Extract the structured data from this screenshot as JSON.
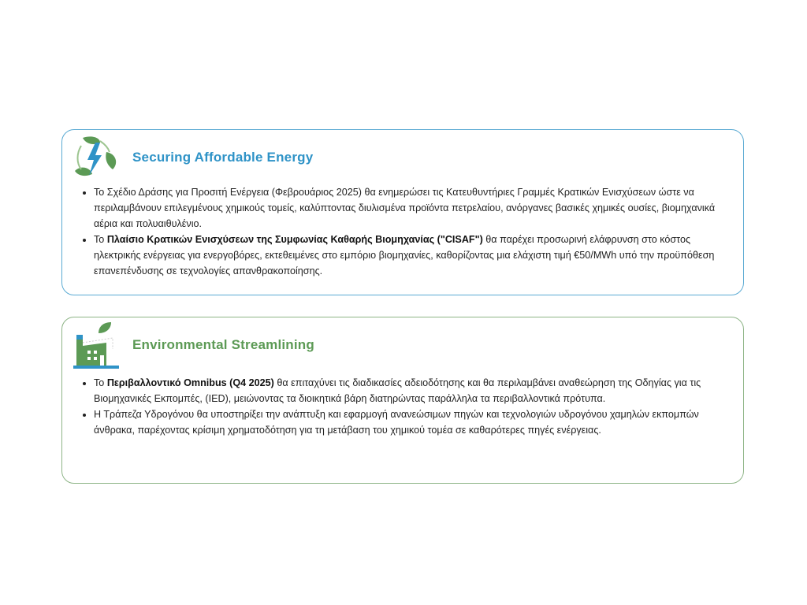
{
  "sections": [
    {
      "title": "Securing Affordable Energy",
      "icon": "energy-bolt-leaves-icon",
      "accent": "#2f93c7",
      "bullets": [
        {
          "pre": "Το Σχέδιο Δράσης για Προσιτή Ενέργεια (Φεβρουάριος 2025) θα ενημερώσει τις Κατευθυντήριες Γραμμές Κρατικών Ενισχύσεων ώστε να περιλαμβάνουν επιλεγμένους χημικούς τομείς, καλύπτοντας διυλισμένα προϊόντα πετρελαίου, ανόργανες βασικές χημικές ουσίες, βιομηχανικά αέρια και πολυαιθυλένιο.",
          "bold": "",
          "post": ""
        },
        {
          "pre": "Το ",
          "bold": "Πλαίσιο Κρατικών Ενισχύσεων της Συμφωνίας Καθαρής Βιομηχανίας (\"CISAF\")",
          "post": " θα παρέχει προσωρινή ελάφρυνση στο κόστος ηλεκτρικής ενέργειας για ενεργοβόρες, εκτεθειμένες στο εμπόριο βιομηχανίες, καθορίζοντας μια ελάχιστη τιμή €50/MWh υπό την προϋπόθεση επανεπένδυσης σε τεχνολογίες απανθρακοποίησης."
        }
      ]
    },
    {
      "title": "Environmental Streamlining",
      "icon": "factory-leaf-icon",
      "accent": "#5c9a55",
      "bullets": [
        {
          "pre": "Το ",
          "bold": "Περιβαλλοντικό Omnibus (Q4 2025)",
          "post": " θα επιταχύνει τις διαδικασίες αδειοδότησης και θα περιλαμβάνει αναθεώρηση της Οδηγίας για τις Βιομηχανικές Εκπομπές, (IED), μειώνοντας τα διοικητικά βάρη διατηρώντας παράλληλα τα περιβαλλοντικά πρότυπα."
        },
        {
          "pre": "Η Τράπεζα Υδρογόνου θα υποστηρίξει την ανάπτυξη και εφαρμογή ανανεώσιμων πηγών και τεχνολογιών υδρογόνου χαμηλών εκπομπών άνθρακα, παρέχοντας κρίσιμη χρηματοδότηση για τη μετάβαση του χημικού τομέα σε καθαρότερες πηγές ενέργειας.",
          "bold": "",
          "post": ""
        }
      ]
    }
  ]
}
